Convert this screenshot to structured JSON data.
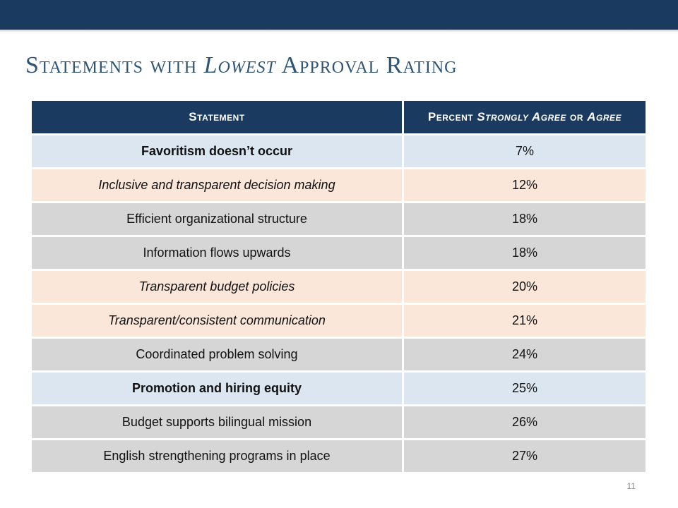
{
  "title": {
    "part1": "Statements with ",
    "emphasis": "Lowest",
    "part2": " Approval Rating"
  },
  "table": {
    "headers": {
      "statement": "Statement",
      "percent_part1": "Percent ",
      "percent_em1": "Strongly Agree",
      "percent_mid": " or ",
      "percent_em2": "Agree"
    },
    "rows": [
      {
        "statement": "Favoritism doesn’t occur",
        "percent": "7%",
        "style": "blue bold"
      },
      {
        "statement": "Inclusive and transparent decision making",
        "percent": "12%",
        "style": "peach italic"
      },
      {
        "statement": "Efficient organizational structure",
        "percent": "18%",
        "style": "gray"
      },
      {
        "statement": "Information flows upwards",
        "percent": "18%",
        "style": "gray"
      },
      {
        "statement": "Transparent budget policies",
        "percent": "20%",
        "style": "peach italic"
      },
      {
        "statement": "Transparent/consistent communication",
        "percent": "21%",
        "style": "peach italic"
      },
      {
        "statement": "Coordinated problem solving",
        "percent": "24%",
        "style": "gray"
      },
      {
        "statement": "Promotion and hiring equity",
        "percent": "25%",
        "style": "blue bold"
      },
      {
        "statement": "Budget supports bilingual mission",
        "percent": "26%",
        "style": "gray"
      },
      {
        "statement": "English strengthening programs in place",
        "percent": "27%",
        "style": "gray"
      }
    ]
  },
  "colors": {
    "header_bar": "#1b3a5f",
    "title": "#2f5574",
    "row_blue": "#dce6f1",
    "row_peach": "#fbe6da",
    "row_gray": "#d6d6d6"
  },
  "page_number": "11"
}
